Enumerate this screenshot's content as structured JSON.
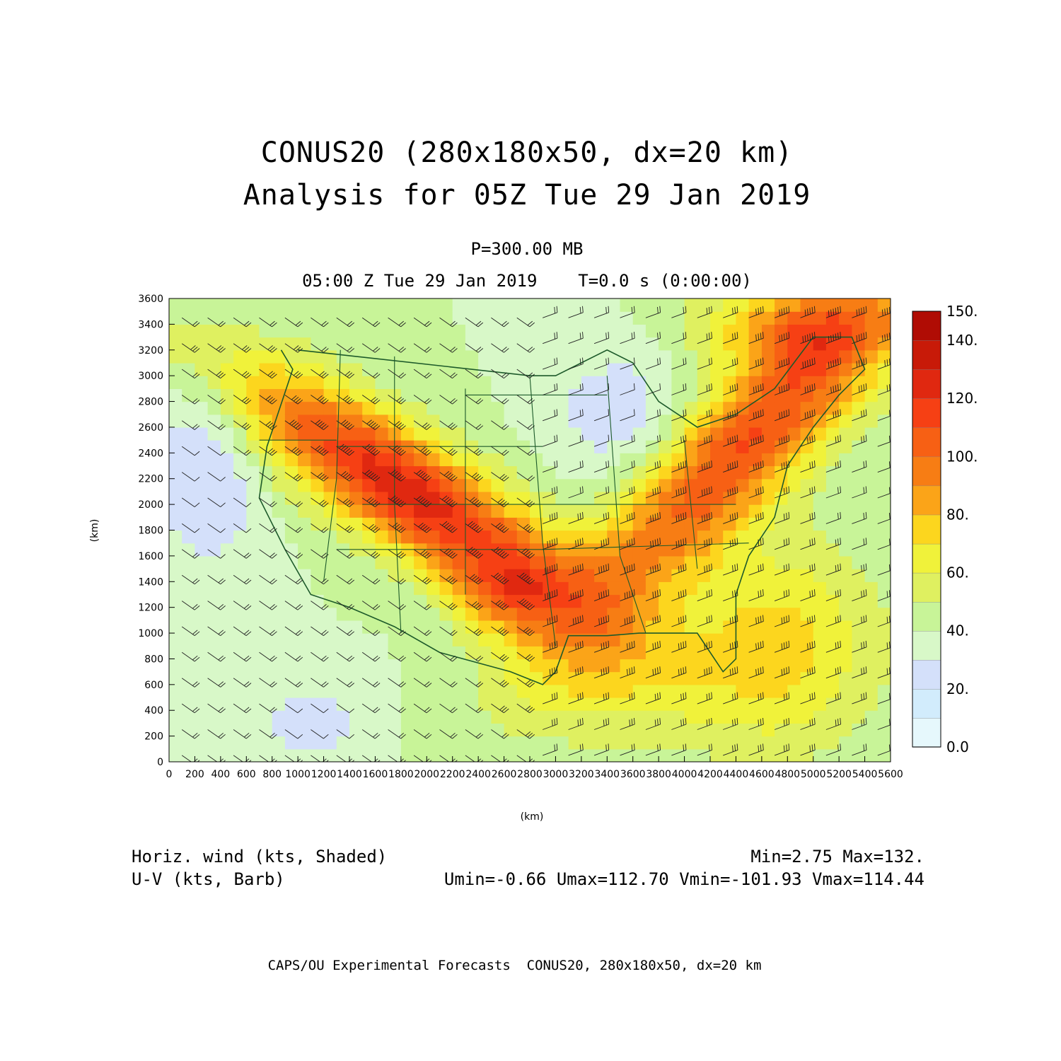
{
  "title": {
    "line1": "CONUS20 (280x180x50, dx=20 km)",
    "line2": "Analysis for 05Z Tue 29 Jan 2019"
  },
  "subtitle": {
    "level": "P=300.00 MB",
    "valid": "05:00 Z Tue 29 Jan 2019    T=0.0 s (0:00:00)"
  },
  "legend": {
    "field1": "Horiz. wind (kts, Shaded)",
    "field2": "U-V (kts, Barb)",
    "minmax": "Min=2.75 Max=132.",
    "uvstats": "Umin=-0.66 Umax=112.70 Vmin=-101.93 Vmax=114.44"
  },
  "footer": "CAPS/OU Experimental Forecasts  CONUS20, 280x180x50, dx=20 km",
  "chart_data": {
    "type": "heatmap",
    "xlabel": "(km)",
    "ylabel": "(km)",
    "xlim": [
      0,
      5600
    ],
    "ylim": [
      0,
      3600
    ],
    "x_ticks": [
      "0",
      "200",
      "400",
      "600",
      "800",
      "1000",
      "1200",
      "1400",
      "1600",
      "1800",
      "2000",
      "2200",
      "2400",
      "2600",
      "2800",
      "3000",
      "3200",
      "3400",
      "3600",
      "3800",
      "4000",
      "4200",
      "4400",
      "4600",
      "4800",
      "5000",
      "5200",
      "5400",
      "5600"
    ],
    "y_ticks": [
      "0",
      "200",
      "400",
      "600",
      "800",
      "1000",
      "1200",
      "1400",
      "1600",
      "1800",
      "2000",
      "2200",
      "2400",
      "2600",
      "2800",
      "3000",
      "3200",
      "3400",
      "3600"
    ],
    "colorbar": {
      "labels": [
        "0.0",
        "20.",
        "40.",
        "60.",
        "80.",
        "100.",
        "120.",
        "140.",
        "150."
      ],
      "levels": [
        0,
        10,
        20,
        30,
        40,
        50,
        60,
        70,
        80,
        90,
        100,
        110,
        120,
        130,
        140,
        150
      ],
      "colors": [
        "#e6f8fc",
        "#d2ecfc",
        "#d4e0fa",
        "#d8f8c8",
        "#c8f498",
        "#dff060",
        "#f0f23a",
        "#fcd61e",
        "#fba418",
        "#f77d14",
        "#f76014",
        "#f64014",
        "#e02810",
        "#c81a08",
        "#b00c04"
      ]
    },
    "field_min": 2.75,
    "field_max": 132
  }
}
